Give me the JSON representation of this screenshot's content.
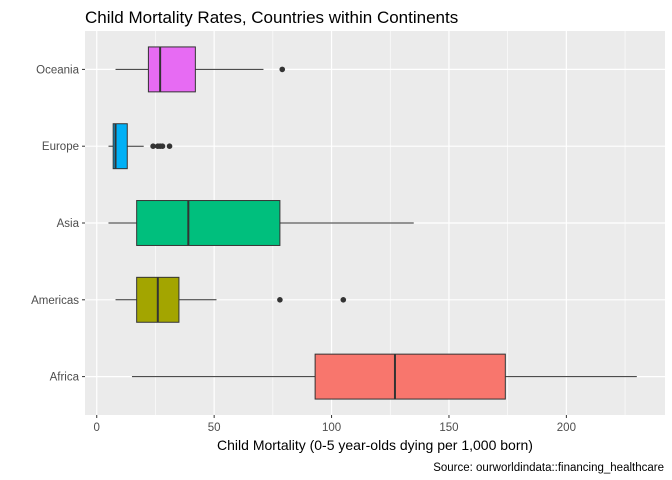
{
  "chart_data": {
    "type": "boxplot",
    "orientation": "horizontal",
    "title": "Child Mortality Rates, Countries within Continents",
    "xlabel": "Child Mortality (0-5 year-olds dying per 1,000 born)",
    "ylabel": "",
    "caption": "Source: ourworldindata::financing_healthcare",
    "xlim": [
      -5,
      242
    ],
    "x_ticks": [
      0,
      50,
      100,
      150,
      200
    ],
    "x_tick_labels": [
      "0",
      "50",
      "100",
      "150",
      "200"
    ],
    "grid": true,
    "legend": "none",
    "categories": [
      "Africa",
      "Americas",
      "Asia",
      "Europe",
      "Oceania"
    ],
    "boxes": [
      {
        "category": "Africa",
        "color": "#F8766D",
        "whisker_low": 15,
        "q1": 93,
        "median": 127,
        "q3": 174,
        "whisker_high": 230,
        "outliers": []
      },
      {
        "category": "Americas",
        "color": "#A3A500",
        "whisker_low": 8,
        "q1": 17,
        "median": 26,
        "q3": 35,
        "whisker_high": 51,
        "outliers": [
          78,
          105
        ]
      },
      {
        "category": "Asia",
        "color": "#00BF7D",
        "whisker_low": 5,
        "q1": 17,
        "median": 39,
        "q3": 78,
        "whisker_high": 135,
        "outliers": []
      },
      {
        "category": "Europe",
        "color": "#00B0F6",
        "whisker_low": 5,
        "q1": 7,
        "median": 8,
        "q3": 13,
        "whisker_high": 20,
        "outliers": [
          24,
          26,
          27,
          28,
          31
        ]
      },
      {
        "category": "Oceania",
        "color": "#E76BF3",
        "whisker_low": 8,
        "q1": 22,
        "median": 27,
        "q3": 42,
        "whisker_high": 71,
        "outliers": [
          79
        ]
      }
    ]
  }
}
